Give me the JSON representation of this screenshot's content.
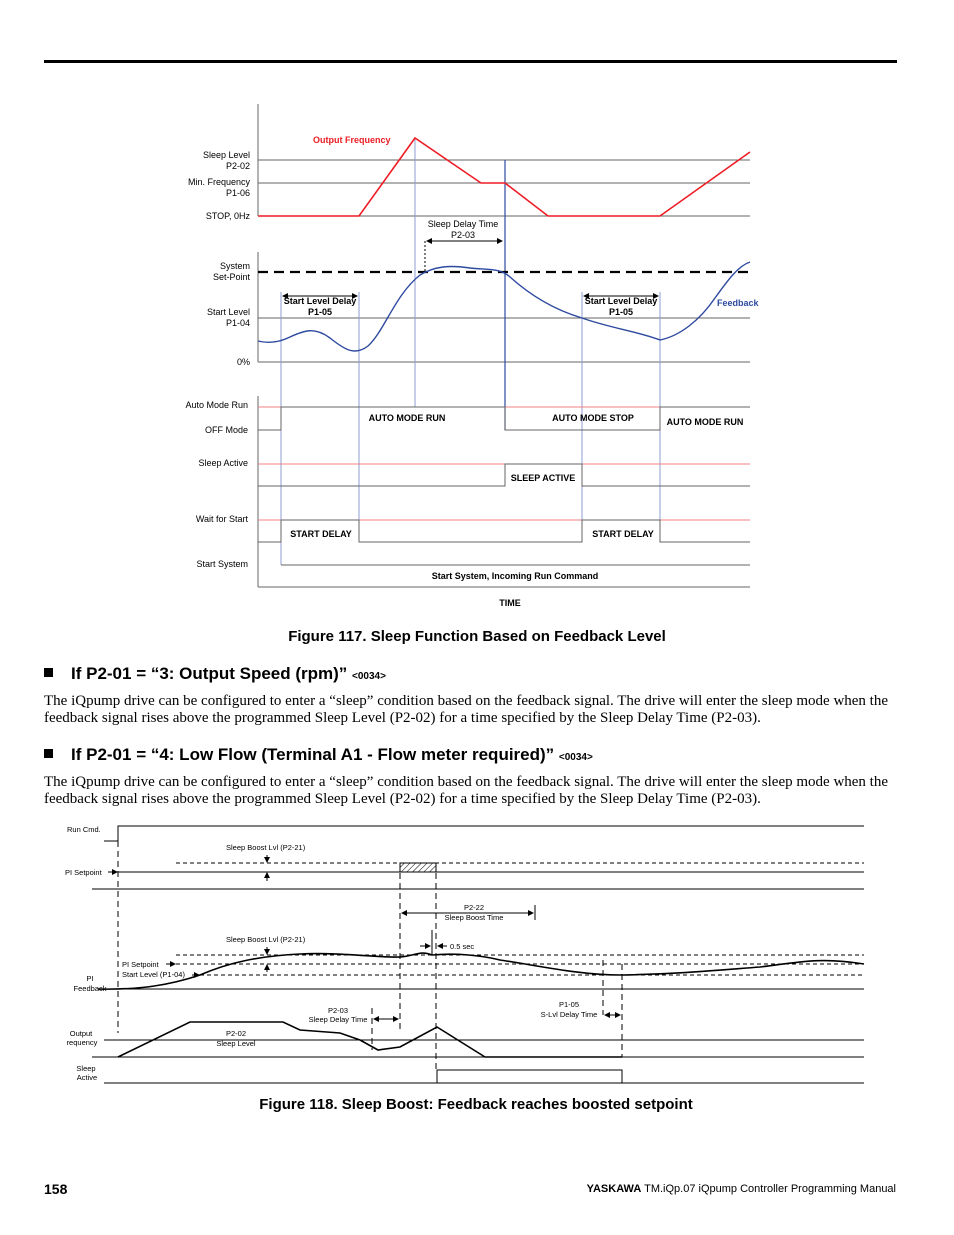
{
  "figure117": {
    "caption": "Figure 117.  Sleep Function Based on Feedback Level",
    "labels": {
      "sleep_level": "Sleep Level",
      "p2_02": "P2-02",
      "min_freq": "Min. Frequency",
      "p1_06": "P1-06",
      "stop": "STOP, 0Hz",
      "output_frequency": "Output Frequency",
      "sleep_delay": "Sleep Delay Time",
      "p2_03": "P2-03",
      "system": "System",
      "setpoint": "Set-Point",
      "start_level": "Start Level",
      "p1_04": "P1-04",
      "zero": "0%",
      "sld": "Start Level Delay",
      "p1_05": "P1-05",
      "feedback": "Feedback",
      "auto_mode_run": "Auto Mode Run",
      "off_mode": "OFF Mode",
      "sleep_active": "Sleep Active",
      "wait_for_start": "Wait for Start",
      "start_system": "Start System",
      "amr": "AUTO MODE RUN",
      "ams": "AUTO MODE STOP",
      "sa": "SLEEP ACTIVE",
      "sd": "START DELAY",
      "ssirc": "Start System, Incoming Run Command",
      "time": "TIME"
    },
    "colors": {
      "output_frequency": "#ee1c24",
      "feedback": "#2e4aa0",
      "grid_red": "#f08080",
      "marker": "#8f9fd0"
    }
  },
  "section1": {
    "title": "If P2-01 = “3: Output Speed (rpm)”",
    "tag": "<0034>",
    "body": "The iQpump drive can be configured to enter a “sleep” condition based on the feedback signal. The drive will enter the sleep mode when the feedback signal rises above the programmed Sleep Level (P2-02) for a time specified by the Sleep Delay Time (P2-03)."
  },
  "section2": {
    "title": "If P2-01 = “4: Low Flow (Terminal A1 - Flow meter required)”",
    "tag": "<0034>",
    "body": "The iQpump drive can be configured to enter a “sleep” condition based on the feedback signal. The drive will enter the sleep mode when the feedback signal rises above the programmed Sleep Level (P2-02) for a time specified by the Sleep Delay Time (P2-03)."
  },
  "figure118": {
    "caption": "Figure 118.  Sleep Boost: Feedback reaches boosted setpoint",
    "labels": {
      "run_cmd": "Run Cmd.",
      "pi_setpoint": "PI Setpoint",
      "boost_lvl": "Sleep Boost Lvl (P2-21)",
      "p2_22": "P2-22",
      "boost_time": "Sleep Boost Time",
      "half_sec": "0.5 sec",
      "start_level": "Start Level (P1-04)",
      "pi": "PI",
      "feedback": "Feedback",
      "p2_03": "P2-03",
      "sleep_delay": "Sleep Delay Time",
      "p1_05": "P1-05",
      "slvl_delay": "S-Lvl Delay Time",
      "output": "Output",
      "requency": "requency",
      "p2_02": "P2-02",
      "sleep_level": "Sleep Level",
      "sleep": "Sleep",
      "active": "Active"
    }
  },
  "footer": {
    "page": "158",
    "brand": "YASKAWA",
    "manual": " TM.iQp.07 iQpump Controller Programming Manual"
  }
}
